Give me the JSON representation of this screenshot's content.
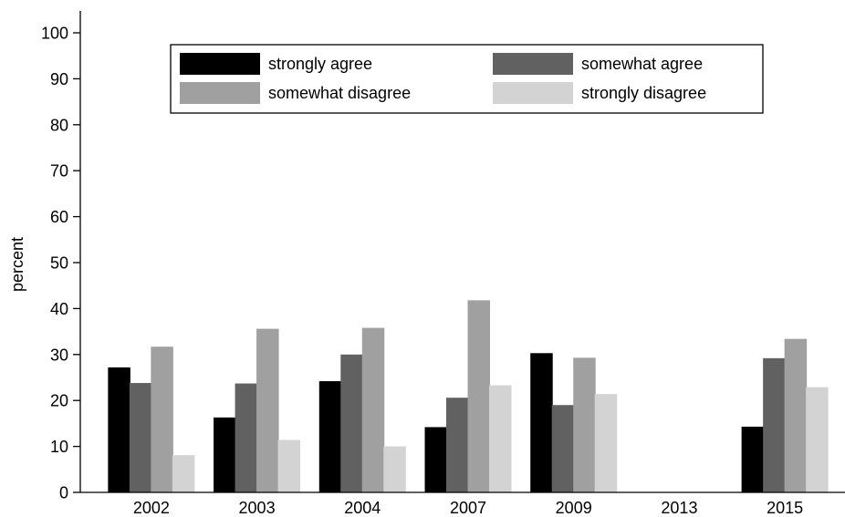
{
  "chart_data": {
    "type": "bar",
    "title": "",
    "xlabel": "",
    "ylabel": "percent",
    "ylim": [
      0,
      100
    ],
    "yticks": [
      0,
      10,
      20,
      30,
      40,
      50,
      60,
      70,
      80,
      90,
      100
    ],
    "categories": [
      "2002",
      "2003",
      "2004",
      "2007",
      "2009",
      "2013",
      "2015"
    ],
    "series": [
      {
        "name": "strongly agree",
        "color": "#000000",
        "values": [
          27.2,
          16.3,
          24.2,
          14.2,
          30.3,
          null,
          14.3
        ]
      },
      {
        "name": "somewhat agree",
        "color": "#616161",
        "values": [
          23.8,
          23.7,
          30.0,
          20.6,
          19.0,
          null,
          29.2
        ]
      },
      {
        "name": "somewhat disagree",
        "color": "#a0a0a0",
        "values": [
          31.7,
          35.6,
          35.8,
          41.8,
          29.3,
          null,
          33.4
        ]
      },
      {
        "name": "strongly disagree",
        "color": "#d3d3d3",
        "values": [
          8.1,
          11.4,
          10.0,
          23.3,
          21.4,
          null,
          22.9
        ]
      }
    ],
    "grid": false,
    "legend_position": "top"
  }
}
